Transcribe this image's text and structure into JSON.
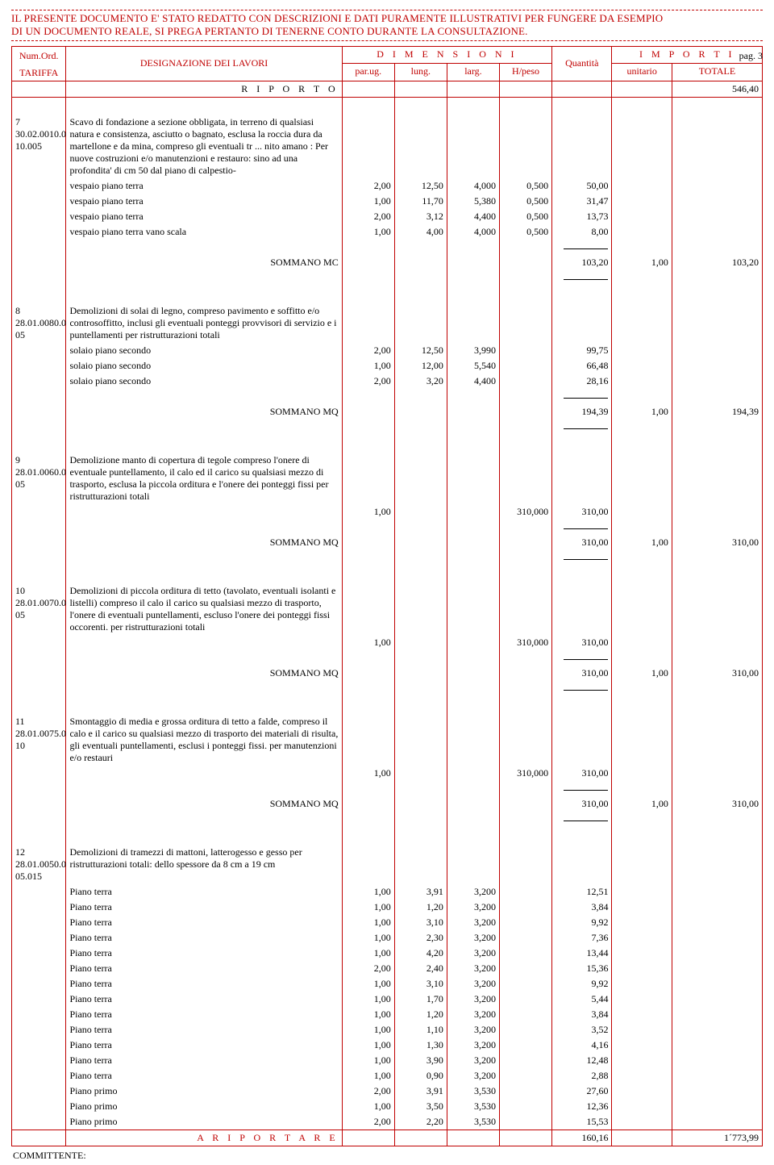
{
  "disclaimer": {
    "line1": "IL PRESENTE DOCUMENTO E' STATO REDATTO CON DESCRIZIONI E DATI PURAMENTE ILLUSTRATIVI PER FUNGERE DA ESEMPIO",
    "line2": "DI UN DOCUMENTO REALE, SI PREGA PERTANTO DI TENERNE CONTO DURANTE LA CONSULTAZIONE."
  },
  "page_label": "pag. 3",
  "header": {
    "numord": "Num.Ord.",
    "tariffa": "TARIFFA",
    "designazione": "DESIGNAZIONE DEI LAVORI",
    "dimensioni": "D I M E N S I O N I",
    "quantita": "Quantità",
    "importi": "I M P O R T I",
    "parug": "par.ug.",
    "lung": "lung.",
    "larg": "larg.",
    "hpeso": "H/peso",
    "unitario": "unitario",
    "totale": "TOTALE"
  },
  "riporto": {
    "label": "R I P O R T O",
    "totale": "546,40"
  },
  "items": [
    {
      "num": "7",
      "tariffa": "30.02.0010.0\n10.005",
      "desc": "Scavo di fondazione a sezione obbligata, in terreno di qualsiasi natura e consistenza, asciutto o bagnato, esclusa la roccia dura da martellone e da mina, compreso gli eventuali tr ... nito amano : Per nuove costruzioni e/o manutenzioni e restauro: sino ad una profondita' di cm 50 dal piano di calpestio-",
      "rows": [
        {
          "label": "vespaio piano terra",
          "parug": "2,00",
          "lung": "12,50",
          "larg": "4,000",
          "hpeso": "0,500",
          "qta": "50,00"
        },
        {
          "label": "vespaio piano terra",
          "parug": "1,00",
          "lung": "11,70",
          "larg": "5,380",
          "hpeso": "0,500",
          "qta": "31,47"
        },
        {
          "label": "vespaio piano terra",
          "parug": "2,00",
          "lung": "3,12",
          "larg": "4,400",
          "hpeso": "0,500",
          "qta": "13,73"
        },
        {
          "label": "vespaio piano terra vano scala",
          "parug": "1,00",
          "lung": "4,00",
          "larg": "4,000",
          "hpeso": "0,500",
          "qta": "8,00"
        }
      ],
      "sum": {
        "label": "SOMMANO MC",
        "qta": "103,20",
        "unit": "1,00",
        "tot": "103,20"
      }
    },
    {
      "num": "8",
      "tariffa": "28.01.0080.0\n05",
      "desc": "Demolizioni di solai di legno, compreso pavimento e soffitto e/o controsoffitto, inclusi gli eventuali ponteggi provvisori di servizio e i puntellamenti per ristrutturazioni totali",
      "rows": [
        {
          "label": "solaio piano secondo",
          "parug": "2,00",
          "lung": "12,50",
          "larg": "3,990",
          "qta": "99,75"
        },
        {
          "label": "solaio piano secondo",
          "parug": "1,00",
          "lung": "12,00",
          "larg": "5,540",
          "qta": "66,48"
        },
        {
          "label": "solaio piano secondo",
          "parug": "2,00",
          "lung": "3,20",
          "larg": "4,400",
          "qta": "28,16"
        }
      ],
      "sum": {
        "label": "SOMMANO MQ",
        "qta": "194,39",
        "unit": "1,00",
        "tot": "194,39"
      }
    },
    {
      "num": "9",
      "tariffa": "28.01.0060.0\n05",
      "desc": "Demolizione manto di copertura di tegole compreso l'onere di eventuale puntellamento, il calo ed il carico su qualsiasi mezzo di trasporto, esclusa la piccola orditura e l'onere dei ponteggi fissi per ristrutturazioni totali",
      "rows": [
        {
          "label": "",
          "parug": "1,00",
          "hpeso": "310,000",
          "qta": "310,00"
        }
      ],
      "sum": {
        "label": "SOMMANO MQ",
        "qta": "310,00",
        "unit": "1,00",
        "tot": "310,00"
      }
    },
    {
      "num": "10",
      "tariffa": "28.01.0070.0\n05",
      "desc": "Demolizioni di piccola orditura di tetto (tavolato, eventuali isolanti e listelli) compreso il calo il carico su qualsiasi mezzo di trasporto, l'onere di eventuali puntellamenti, escluso l'onere dei ponteggi fissi occorenti. per ristrutturazioni totali",
      "rows": [
        {
          "label": "",
          "parug": "1,00",
          "hpeso": "310,000",
          "qta": "310,00"
        }
      ],
      "sum": {
        "label": "SOMMANO MQ",
        "qta": "310,00",
        "unit": "1,00",
        "tot": "310,00"
      }
    },
    {
      "num": "11",
      "tariffa": "28.01.0075.0\n10",
      "desc": "Smontaggio di media e grossa orditura di tetto a falde, compreso il calo e il carico su qualsiasi mezzo di trasporto dei materiali di risulta, gli eventuali puntellamenti, esclusi i ponteggi fissi. per manutenzioni e/o restauri",
      "rows": [
        {
          "label": "",
          "parug": "1,00",
          "hpeso": "310,000",
          "qta": "310,00"
        }
      ],
      "sum": {
        "label": "SOMMANO MQ",
        "qta": "310,00",
        "unit": "1,00",
        "tot": "310,00"
      }
    },
    {
      "num": "12",
      "tariffa": "28.01.0050.0\n05.015",
      "desc": "Demolizioni di tramezzi di mattoni, latterogesso e gesso per ristrutturazioni totali: dello spessore da 8 cm a 19 cm",
      "rows": [
        {
          "label": "Piano terra",
          "parug": "1,00",
          "lung": "3,91",
          "larg": "3,200",
          "qta": "12,51"
        },
        {
          "label": "Piano terra",
          "parug": "1,00",
          "lung": "1,20",
          "larg": "3,200",
          "qta": "3,84"
        },
        {
          "label": "Piano terra",
          "parug": "1,00",
          "lung": "3,10",
          "larg": "3,200",
          "qta": "9,92"
        },
        {
          "label": "Piano terra",
          "parug": "1,00",
          "lung": "2,30",
          "larg": "3,200",
          "qta": "7,36"
        },
        {
          "label": "Piano terra",
          "parug": "1,00",
          "lung": "4,20",
          "larg": "3,200",
          "qta": "13,44"
        },
        {
          "label": "Piano terra",
          "parug": "2,00",
          "lung": "2,40",
          "larg": "3,200",
          "qta": "15,36"
        },
        {
          "label": "Piano terra",
          "parug": "1,00",
          "lung": "3,10",
          "larg": "3,200",
          "qta": "9,92"
        },
        {
          "label": "Piano terra",
          "parug": "1,00",
          "lung": "1,70",
          "larg": "3,200",
          "qta": "5,44"
        },
        {
          "label": "Piano terra",
          "parug": "1,00",
          "lung": "1,20",
          "larg": "3,200",
          "qta": "3,84"
        },
        {
          "label": "Piano terra",
          "parug": "1,00",
          "lung": "1,10",
          "larg": "3,200",
          "qta": "3,52"
        },
        {
          "label": "Piano terra",
          "parug": "1,00",
          "lung": "1,30",
          "larg": "3,200",
          "qta": "4,16"
        },
        {
          "label": "Piano terra",
          "parug": "1,00",
          "lung": "3,90",
          "larg": "3,200",
          "qta": "12,48"
        },
        {
          "label": "Piano terra",
          "parug": "1,00",
          "lung": "0,90",
          "larg": "3,200",
          "qta": "2,88"
        },
        {
          "label": "Piano primo",
          "parug": "2,00",
          "lung": "3,91",
          "larg": "3,530",
          "qta": "27,60"
        },
        {
          "label": "Piano primo",
          "parug": "1,00",
          "lung": "3,50",
          "larg": "3,530",
          "qta": "12,36"
        },
        {
          "label": "Piano primo",
          "parug": "2,00",
          "lung": "2,20",
          "larg": "3,530",
          "qta": "15,53"
        }
      ]
    }
  ],
  "ariportare": {
    "label": "A  R I P O R T A R E",
    "qta": "160,16",
    "tot": "1´773,99"
  },
  "committente": "COMMITTENTE:"
}
